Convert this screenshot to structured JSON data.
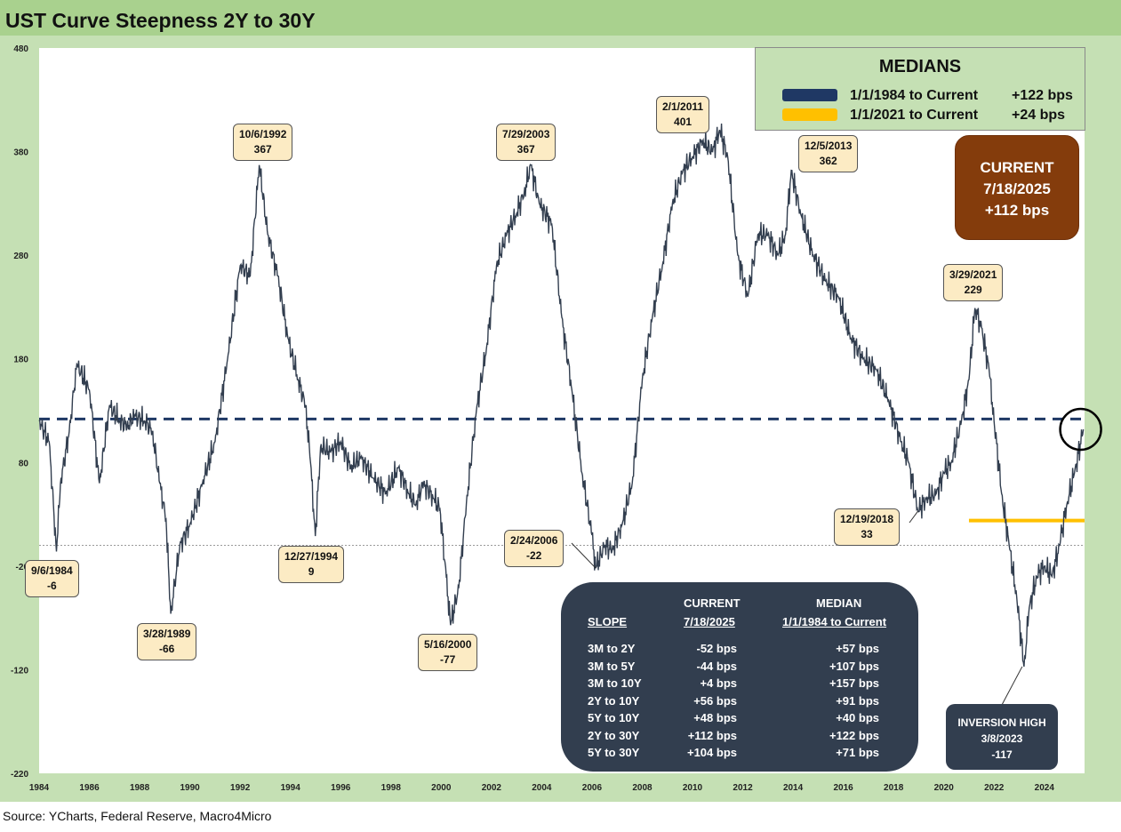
{
  "title": "UST Curve Steepness 2Y to 30Y",
  "source": "Source: YCharts, Federal Reserve, Macro4Micro",
  "colors": {
    "series": "#323e4f",
    "median_1984": "#1f3864",
    "median_2021": "#ffc000",
    "title_bar": "#a9d18e",
    "frame": "#c5e0b4",
    "current_box": "#843c0c",
    "slope_box": "#323e4f",
    "callout_fill": "#fcebc4"
  },
  "chart_data": {
    "type": "line",
    "title": "UST Curve Steepness 2Y to 30Y",
    "xlabel": "",
    "ylabel": "",
    "xlim": [
      1984,
      2025.6
    ],
    "ylim": [
      -220,
      480
    ],
    "xticks": [
      1984,
      1986,
      1988,
      1990,
      1992,
      1994,
      1996,
      1998,
      2000,
      2002,
      2004,
      2006,
      2008,
      2010,
      2012,
      2014,
      2016,
      2018,
      2020,
      2022,
      2024
    ],
    "yticks": [
      480,
      380,
      280,
      180,
      80,
      -20,
      -120,
      -220
    ],
    "grid": false,
    "series": [
      {
        "units": "bps",
        "x": [
          1984.0,
          1984.4,
          1984.69,
          1984.85,
          1985.2,
          1985.5,
          1986.0,
          1986.4,
          1986.8,
          1987.2,
          1987.5,
          1987.8,
          1988.2,
          1988.5,
          1988.8,
          1989.05,
          1989.24,
          1989.6,
          1990.0,
          1990.5,
          1991.0,
          1991.5,
          1992.0,
          1992.4,
          1992.76,
          1993.1,
          1993.5,
          1993.9,
          1994.3,
          1994.6,
          1994.8,
          1994.99,
          1995.2,
          1995.6,
          1996.0,
          1996.4,
          1996.8,
          1997.3,
          1997.8,
          1998.3,
          1998.7,
          1999.0,
          1999.3,
          1999.7,
          1999.95,
          2000.2,
          2000.37,
          2000.7,
          2001.0,
          2001.4,
          2001.8,
          2002.2,
          2002.6,
          2003.0,
          2003.3,
          2003.57,
          2003.9,
          2004.4,
          2004.8,
          2005.2,
          2005.6,
          2006.0,
          2006.15,
          2006.5,
          2006.8,
          2007.2,
          2007.6,
          2008.0,
          2008.4,
          2008.8,
          2009.2,
          2009.6,
          2010.0,
          2010.4,
          2010.8,
          2011.08,
          2011.4,
          2011.8,
          2012.2,
          2012.6,
          2013.0,
          2013.4,
          2013.7,
          2013.93,
          2014.3,
          2014.8,
          2015.3,
          2015.8,
          2016.3,
          2016.8,
          2017.3,
          2017.8,
          2018.3,
          2018.6,
          2018.97,
          2019.3,
          2019.7,
          2020.0,
          2020.3,
          2020.7,
          2021.0,
          2021.24,
          2021.5,
          2021.8,
          2022.0,
          2022.3,
          2022.6,
          2022.9,
          2023.19,
          2023.4,
          2023.7,
          2024.0,
          2024.3,
          2024.6,
          2024.9,
          2025.2,
          2025.55
        ],
        "values": [
          120,
          100,
          -6,
          60,
          110,
          175,
          150,
          60,
          135,
          120,
          115,
          125,
          120,
          110,
          60,
          25,
          -66,
          0,
          20,
          60,
          100,
          180,
          270,
          260,
          367,
          300,
          260,
          200,
          160,
          135,
          80,
          9,
          95,
          90,
          100,
          75,
          85,
          65,
          50,
          75,
          50,
          40,
          60,
          45,
          35,
          -30,
          -77,
          -40,
          40,
          130,
          190,
          270,
          300,
          320,
          340,
          367,
          330,
          310,
          220,
          150,
          70,
          10,
          -22,
          0,
          -5,
          20,
          60,
          160,
          220,
          270,
          330,
          360,
          375,
          390,
          380,
          401,
          375,
          280,
          240,
          300,
          300,
          280,
          300,
          362,
          320,
          280,
          255,
          240,
          200,
          180,
          170,
          140,
          100,
          80,
          33,
          45,
          50,
          70,
          80,
          120,
          160,
          229,
          210,
          170,
          120,
          50,
          0,
          -50,
          -117,
          -60,
          -30,
          -20,
          -30,
          0,
          40,
          70,
          112
        ]
      }
    ],
    "reference_lines": [
      {
        "label": "1/1/1984 to Current",
        "value": 122,
        "x_from": 1984,
        "x_to": 2025.6,
        "style": "dashed",
        "color": "#1f3864"
      },
      {
        "label": "1/1/2021 to Current",
        "value": 24,
        "x_from": 2021.0,
        "x_to": 2025.6,
        "style": "solid",
        "color": "#ffc000"
      },
      {
        "value": 0,
        "style": "dotted",
        "color": "#9a9a9a"
      }
    ],
    "annotations": [
      {
        "date": "9/6/1984",
        "value": "-6",
        "x": 1984.69,
        "y": -6
      },
      {
        "date": "3/28/1989",
        "value": "-66",
        "x": 1989.24,
        "y": -66
      },
      {
        "date": "10/6/1992",
        "value": "367",
        "x": 1992.76,
        "y": 367
      },
      {
        "date": "12/27/1994",
        "value": "9",
        "x": 1994.99,
        "y": 9
      },
      {
        "date": "5/16/2000",
        "value": "-77",
        "x": 2000.37,
        "y": -77
      },
      {
        "date": "7/29/2003",
        "value": "367",
        "x": 2003.57,
        "y": 367
      },
      {
        "date": "2/24/2006",
        "value": "-22",
        "x": 2006.15,
        "y": -22
      },
      {
        "date": "2/1/2011",
        "value": "401",
        "x": 2011.08,
        "y": 401
      },
      {
        "date": "12/5/2013",
        "value": "362",
        "x": 2013.93,
        "y": 362
      },
      {
        "date": "12/19/2018",
        "value": "33",
        "x": 2018.97,
        "y": 33
      },
      {
        "date": "3/29/2021",
        "value": "229",
        "x": 2021.24,
        "y": 229
      }
    ],
    "highlight_circle": {
      "x": 2025.55,
      "y": 112
    }
  },
  "medians": {
    "title": "MEDIANS",
    "rows": [
      {
        "label": "1/1/1984 to Current",
        "value": "+122 bps"
      },
      {
        "label": "1/1/2021 to Current",
        "value": "+24 bps"
      }
    ]
  },
  "current": {
    "title": "CURRENT",
    "date": "7/18/2025",
    "value": "+112 bps"
  },
  "slope_table": {
    "col_current_top": "CURRENT",
    "col_current_bottom": "7/18/2025",
    "col_median_top": "MEDIAN",
    "col_median_bottom": "1/1/1984 to Current",
    "row_header": "SLOPE",
    "rows": [
      {
        "slope": "3M to 2Y",
        "current": "-52 bps",
        "median": "+57 bps"
      },
      {
        "slope": "3M to 5Y",
        "current": "-44 bps",
        "median": "+107 bps"
      },
      {
        "slope": "3M to 10Y",
        "current": "+4 bps",
        "median": "+157 bps"
      },
      {
        "slope": "2Y to 10Y",
        "current": "+56 bps",
        "median": "+91 bps"
      },
      {
        "slope": "5Y to 10Y",
        "current": "+48 bps",
        "median": "+40 bps"
      },
      {
        "slope": "2Y to 30Y",
        "current": "+112 bps",
        "median": "+122 bps"
      },
      {
        "slope": "5Y to 30Y",
        "current": "+104 bps",
        "median": "+71 bps"
      }
    ]
  },
  "inversion": {
    "title": "INVERSION HIGH",
    "date": "3/8/2023",
    "value": "-117",
    "x": 2023.19,
    "y": -117
  }
}
